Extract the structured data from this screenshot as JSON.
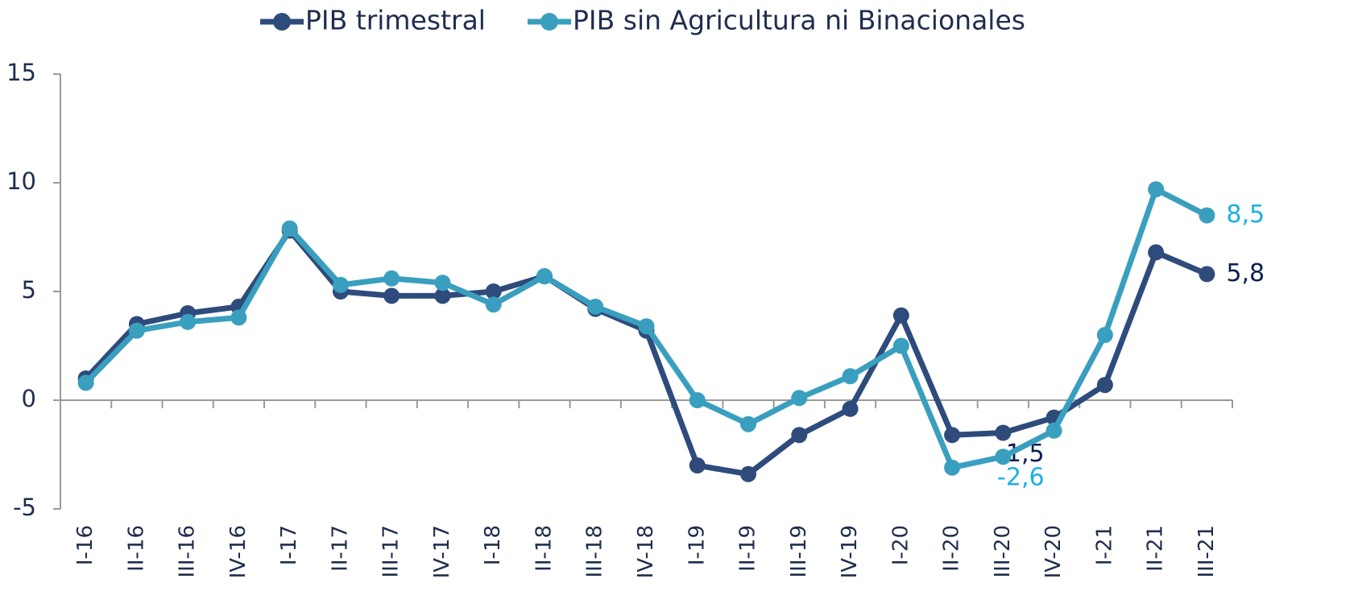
{
  "chart_data": {
    "type": "line",
    "categories": [
      "I-16",
      "II-16",
      "III-16",
      "IV-16",
      "I-17",
      "II-17",
      "III-17",
      "IV-17",
      "I-18",
      "II-18",
      "III-18",
      "IV-18",
      "I-19",
      "II-19",
      "III-19",
      "IV-19",
      "I-20",
      "II-20",
      "III-20",
      "IV-20",
      "I-21",
      "II-21",
      "III-21"
    ],
    "series": [
      {
        "name": "PIB trimestral",
        "color": "#2e4b7c",
        "label_color": "#0d1f4f",
        "values": [
          1.0,
          3.5,
          4.0,
          4.3,
          7.8,
          5.0,
          4.8,
          4.8,
          5.0,
          5.7,
          4.2,
          3.2,
          -3.0,
          -3.4,
          -1.6,
          -0.4,
          3.9,
          -1.6,
          -1.5,
          -0.8,
          0.7,
          6.8,
          5.8
        ],
        "value_labels": [
          null,
          null,
          null,
          null,
          null,
          null,
          null,
          null,
          null,
          null,
          null,
          null,
          null,
          null,
          null,
          null,
          null,
          null,
          "-1,5",
          null,
          null,
          null,
          "5,8"
        ]
      },
      {
        "name": "PIB sin Agricultura ni Binacionales",
        "color": "#3a9fbf",
        "label_color": "#1ab0e0",
        "values": [
          0.8,
          3.2,
          3.6,
          3.8,
          7.9,
          5.3,
          5.6,
          5.4,
          4.4,
          5.7,
          4.3,
          3.4,
          0.0,
          -1.1,
          0.1,
          1.1,
          2.5,
          -3.1,
          -2.6,
          -1.4,
          3.0,
          9.7,
          8.5
        ],
        "value_labels": [
          null,
          null,
          null,
          null,
          null,
          null,
          null,
          null,
          null,
          null,
          null,
          null,
          null,
          null,
          null,
          null,
          null,
          null,
          "-2,6",
          null,
          null,
          null,
          "8,5"
        ]
      }
    ],
    "ylim": [
      -5,
      15
    ],
    "yticks": [
      -5,
      0,
      5,
      10,
      15
    ],
    "grid": false,
    "legend": "top"
  }
}
